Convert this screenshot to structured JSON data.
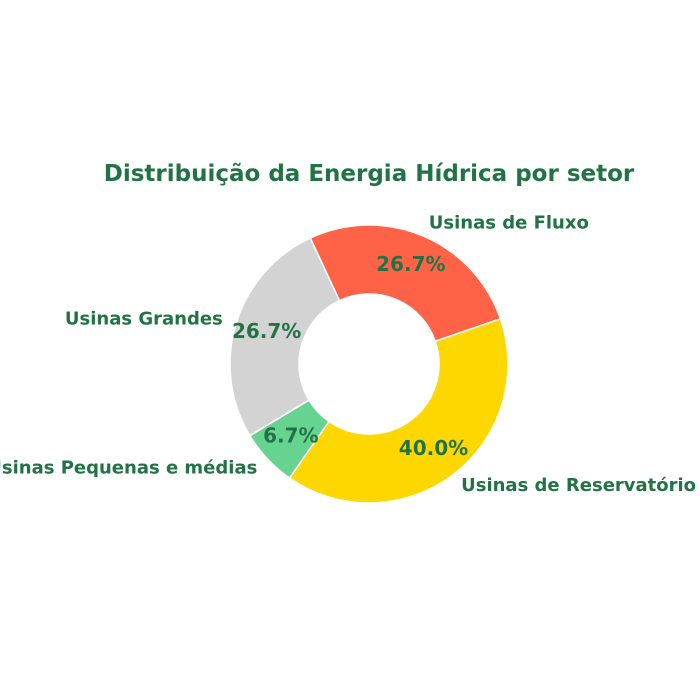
{
  "chart_data": {
    "type": "pie",
    "title": "Distribuição da Energia Hídrica por setor",
    "categories": [
      "Usinas de Fluxo",
      "Usinas de Reservatório",
      "Usinas Pequenas e médias",
      "Usinas Grandes"
    ],
    "values": [
      26.7,
      40.0,
      6.7,
      26.7
    ],
    "percent_labels": [
      "26.7%",
      "40.0%",
      "6.7%",
      "26.7%"
    ],
    "colors": [
      "#ff6347",
      "#ffd700",
      "#66d391",
      "#d3d3d3"
    ],
    "text_color": "#217346",
    "donut": true
  }
}
